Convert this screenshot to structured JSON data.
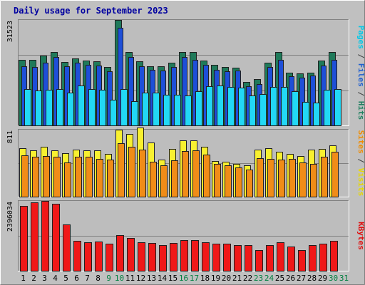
{
  "chart_data": {
    "type": "bar",
    "title": "Daily usage for September 2023",
    "categories": [
      "1",
      "2",
      "3",
      "4",
      "5",
      "6",
      "7",
      "8",
      "9",
      "10",
      "11",
      "12",
      "13",
      "14",
      "15",
      "16",
      "17",
      "18",
      "19",
      "20",
      "21",
      "22",
      "23",
      "24",
      "25",
      "26",
      "27",
      "28",
      "29",
      "30",
      "31"
    ],
    "weekend_days": [
      "9",
      "10",
      "16",
      "17",
      "23",
      "24",
      "30",
      "31"
    ],
    "panels": [
      {
        "id": "hits",
        "max_label": "31523",
        "max": 31523,
        "side_label_parts": [
          {
            "text": "Pages",
            "color": "#00c8e8"
          },
          {
            "text": " / ",
            "color": "#404040"
          },
          {
            "text": "Files",
            "color": "#2060d0"
          },
          {
            "text": " / ",
            "color": "#404040"
          },
          {
            "text": "Hits",
            "color": "#208060"
          }
        ],
        "series": [
          {
            "name": "Hits",
            "color": "#1f7a5a",
            "values": [
              19600,
              19600,
              20900,
              22000,
              19000,
              20000,
              19400,
              19200,
              17500,
              31500,
              22000,
              19200,
              17600,
              17600,
              18800,
              22000,
              21900,
              19400,
              18000,
              17500,
              17200,
              13000,
              13800,
              18800,
              21900,
              15800,
              15500,
              15800,
              19400,
              21900,
              0
            ]
          },
          {
            "name": "Files",
            "color": "#1e4fd8",
            "values": [
              17600,
              17400,
              18700,
              20500,
              17600,
              18800,
              18100,
              17800,
              16200,
              29200,
              20500,
              17600,
              16700,
              16300,
              17500,
              20500,
              19700,
              18000,
              16700,
              16200,
              16300,
              11800,
              12300,
              17400,
              19600,
              14700,
              14200,
              14900,
              17800,
              19600,
              0
            ]
          },
          {
            "name": "Pages",
            "color": "#22d8f5",
            "values": [
              10900,
              10400,
              10600,
              10800,
              9800,
              12000,
              10900,
              10600,
              7600,
              10900,
              7300,
              9700,
              9700,
              9200,
              9200,
              9000,
              10200,
              11800,
              12000,
              11600,
              11200,
              8900,
              9300,
              11500,
              11400,
              10200,
              7100,
              6800,
              10700,
              10900,
              0
            ]
          }
        ]
      },
      {
        "id": "visits",
        "max_label": "811",
        "max": 811,
        "side_label_parts": [
          {
            "text": "Sites",
            "color": "#f08c00"
          },
          {
            "text": " / ",
            "color": "#404040"
          },
          {
            "text": "Visits",
            "color": "#e8d800"
          }
        ],
        "series": [
          {
            "name": "Visits",
            "color": "#f8f030",
            "values": [
              590,
              560,
              600,
              560,
              530,
              570,
              560,
              560,
              520,
              810,
              760,
              840,
              660,
              450,
              580,
              680,
              680,
              600,
              430,
              420,
              400,
              380,
              570,
              590,
              540,
              520,
              490,
              570,
              580,
              620,
              0
            ]
          },
          {
            "name": "Sites",
            "color": "#f08c18",
            "values": [
              500,
              480,
              490,
              480,
              410,
              480,
              480,
              460,
              450,
              650,
              600,
              570,
              420,
              380,
              440,
              550,
              560,
              510,
              400,
              380,
              350,
              330,
              470,
              460,
              450,
              460,
              410,
              400,
              480,
              540,
              0
            ]
          }
        ]
      },
      {
        "id": "kbytes",
        "max_label": "2396034",
        "max": 2396034,
        "side_label_parts": [
          {
            "text": "KBytes",
            "color": "#e01010"
          }
        ],
        "series": [
          {
            "name": "KBytes",
            "color": "#f01818",
            "values": [
              2220000,
              2340000,
              2400000,
              2300000,
              1580000,
              1030000,
              980000,
              1010000,
              920000,
              1230000,
              1120000,
              980000,
              950000,
              870000,
              960000,
              1050000,
              1040000,
              980000,
              940000,
              930000,
              880000,
              870000,
              710000,
              880000,
              990000,
              840000,
              700000,
              870000,
              940000,
              1030000,
              0
            ]
          }
        ]
      }
    ]
  }
}
